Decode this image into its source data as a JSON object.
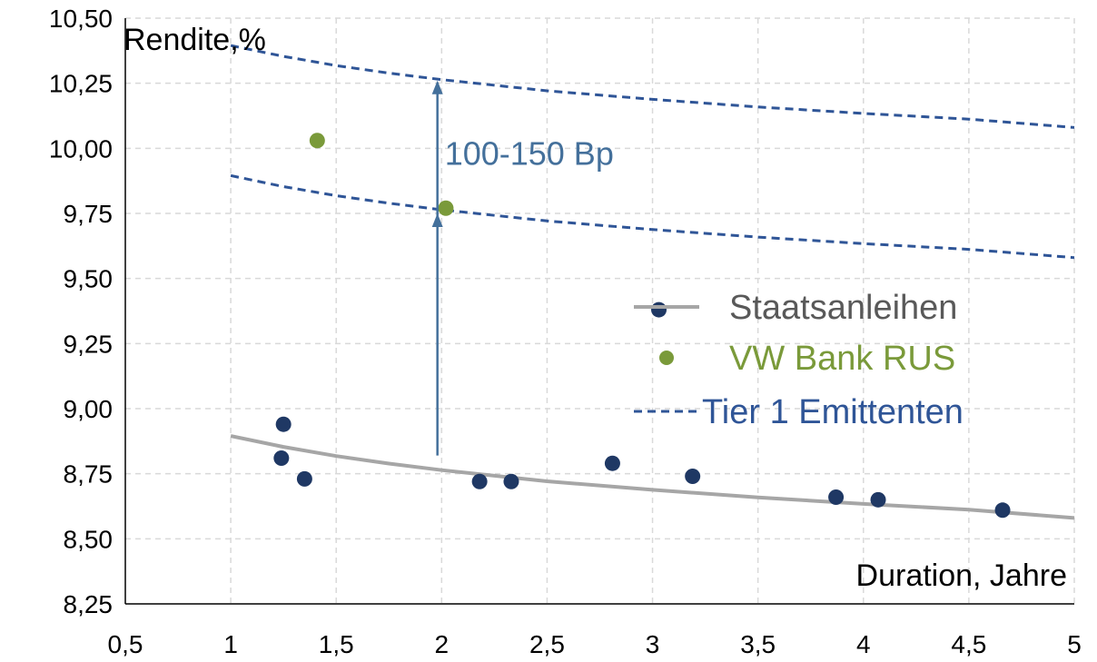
{
  "chart_data": {
    "type": "scatter",
    "ylabel": "Rendite,%",
    "xlabel": "Duration, Jahre",
    "xlim": [
      0.5,
      5
    ],
    "ylim": [
      8.25,
      10.5
    ],
    "x_ticks": [
      "0,5",
      "1",
      "1,5",
      "2",
      "2,5",
      "3",
      "3,5",
      "4",
      "4,5",
      "5"
    ],
    "x_tick_values": [
      0.5,
      1,
      1.5,
      2,
      2.5,
      3,
      3.5,
      4,
      4.5,
      5
    ],
    "y_ticks": [
      "8,25",
      "8,50",
      "8,75",
      "9,00",
      "9,25",
      "9,50",
      "9,75",
      "10,00",
      "10,25",
      "10,50"
    ],
    "y_tick_values": [
      8.25,
      8.5,
      8.75,
      9.0,
      9.25,
      9.5,
      9.75,
      10.0,
      10.25,
      10.5
    ],
    "grid": true,
    "legend_position": "right",
    "colors": {
      "staats_points": "#1f3864",
      "staats_curve": "#a6a6a6",
      "vw": "#7a9a3a",
      "tier1": "#2f5597",
      "annotation": "#44709b"
    },
    "series": [
      {
        "name": "Staatsanleihen",
        "x": [
          1.24,
          1.25,
          1.35,
          2.18,
          2.33,
          2.81,
          3.19,
          3.87,
          4.07,
          4.66
        ],
        "y": [
          8.81,
          8.94,
          8.73,
          8.72,
          8.72,
          8.79,
          8.74,
          8.66,
          8.65,
          8.61
        ],
        "curve": {
          "x": [
            1.0,
            1.25,
            1.5,
            1.75,
            2.0,
            2.5,
            3.0,
            3.5,
            4.0,
            4.5,
            5.0
          ],
          "y": [
            8.895,
            8.853,
            8.818,
            8.789,
            8.764,
            8.721,
            8.688,
            8.659,
            8.634,
            8.612,
            8.58
          ]
        }
      },
      {
        "name": "VW Bank RUS",
        "x": [
          1.41,
          2.02
        ],
        "y": [
          10.03,
          9.77
        ]
      },
      {
        "name": "Tier 1 Emittenten",
        "curves": [
          {
            "x": [
              1.0,
              1.25,
              1.5,
              1.75,
              2.0,
              2.5,
              3.0,
              3.5,
              4.0,
              4.5,
              5.0
            ],
            "y": [
              10.395,
              10.353,
              10.318,
              10.289,
              10.264,
              10.221,
              10.188,
              10.159,
              10.134,
              10.112,
              10.08
            ]
          },
          {
            "x": [
              1.0,
              1.25,
              1.5,
              1.75,
              2.0,
              2.5,
              3.0,
              3.5,
              4.0,
              4.5,
              5.0
            ],
            "y": [
              9.895,
              9.853,
              9.818,
              9.789,
              9.764,
              9.721,
              9.688,
              9.659,
              9.634,
              9.612,
              9.58
            ]
          }
        ]
      }
    ],
    "annotation": {
      "text": "100-150 Bp",
      "arrow_x": 1.98,
      "arrow_from": 8.82,
      "arrow_to_lower": 9.75,
      "arrow_to_upper": 10.26
    },
    "extra_marker": {
      "x": 3.03,
      "y": 9.38
    }
  }
}
